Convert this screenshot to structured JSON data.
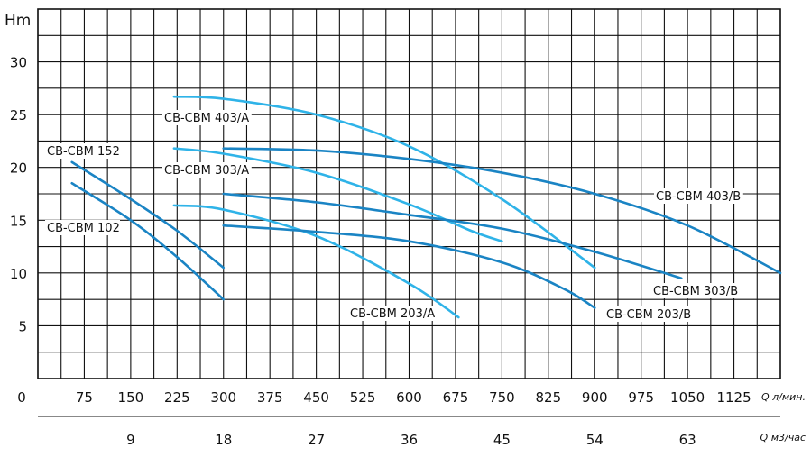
{
  "chart_data": {
    "type": "line",
    "ylabel": "Hm",
    "ylim": [
      0,
      35
    ],
    "yticks": [
      5,
      10,
      15,
      20,
      25,
      30
    ],
    "xlim": [
      0,
      1200
    ],
    "xticks_primary": [
      "0",
      "75",
      "150",
      "225",
      "300",
      "375",
      "450",
      "525",
      "600",
      "675",
      "750",
      "825",
      "900",
      "975",
      "1050",
      "1125"
    ],
    "xlabel_primary": "Q л/мин.",
    "xticks_secondary": [
      "9",
      "18",
      "27",
      "36",
      "45",
      "54",
      "63"
    ],
    "xlabel_secondary": "Q м3/час",
    "grid": true,
    "colors": {
      "dark": "#1a84c4",
      "light": "#2fb3e8",
      "grid": "#111111"
    },
    "series": [
      {
        "name": "CB-CBM 152",
        "shade": "dark",
        "x": [
          55,
          150,
          225,
          300
        ],
        "y": [
          20.5,
          17.0,
          14.0,
          10.5
        ]
      },
      {
        "name": "CB-CBM 102",
        "shade": "dark",
        "x": [
          55,
          150,
          225,
          300
        ],
        "y": [
          18.5,
          15.0,
          11.5,
          7.5
        ]
      },
      {
        "name": "CB-CBM 403/A",
        "shade": "light",
        "x": [
          220,
          300,
          450,
          600,
          750,
          900
        ],
        "y": [
          26.7,
          26.5,
          25.0,
          22.0,
          17.0,
          10.5
        ]
      },
      {
        "name": "CB-CBM 303/A",
        "shade": "light",
        "x": [
          220,
          300,
          450,
          600,
          700,
          750
        ],
        "y": [
          21.8,
          21.3,
          19.5,
          16.5,
          14.0,
          13.0
        ]
      },
      {
        "name": "CB-CBM 203/A",
        "shade": "light",
        "x": [
          220,
          300,
          450,
          600,
          680
        ],
        "y": [
          16.4,
          16.0,
          13.5,
          9.0,
          5.8
        ]
      },
      {
        "name": "CB-CBM 403/B",
        "shade": "dark",
        "x": [
          300,
          450,
          600,
          750,
          900,
          1050,
          1200
        ],
        "y": [
          21.8,
          21.6,
          20.8,
          19.5,
          17.5,
          14.5,
          10.0
        ]
      },
      {
        "name": "CB-CBM 303/B",
        "shade": "dark",
        "x": [
          300,
          450,
          600,
          750,
          900,
          1040
        ],
        "y": [
          17.5,
          16.7,
          15.5,
          14.2,
          12.0,
          9.5
        ]
      },
      {
        "name": "CB-CBM 203/B",
        "shade": "dark",
        "x": [
          300,
          450,
          600,
          750,
          850,
          900
        ],
        "y": [
          14.5,
          13.9,
          13.0,
          11.0,
          8.5,
          6.7
        ]
      }
    ]
  }
}
